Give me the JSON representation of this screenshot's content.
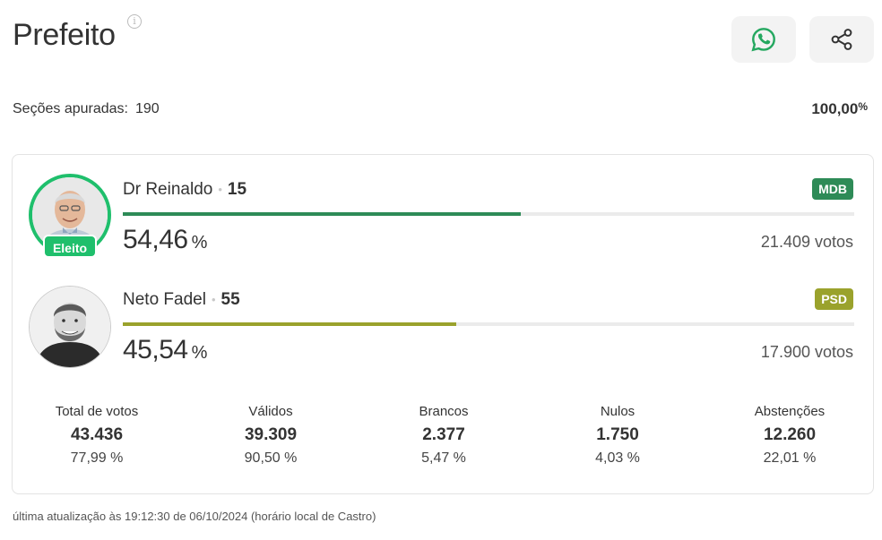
{
  "header": {
    "title": "Prefeito",
    "info_icon": "info-icon",
    "actions": [
      {
        "name": "whatsapp-button",
        "icon": "whatsapp-icon"
      },
      {
        "name": "share-button",
        "icon": "share-icon"
      }
    ]
  },
  "summary": {
    "secoes_label": "Seções apuradas:",
    "secoes_value": "190",
    "percent_value": "100,00",
    "percent_symbol": "%"
  },
  "candidates": [
    {
      "name": "Dr Reinaldo",
      "number": "15",
      "party": "MDB",
      "party_color": "#2e8b57",
      "bar_color": "#2e8b57",
      "share": 54.46,
      "percent": "54,46",
      "percent_symbol": "%",
      "votes": "21.409 votos",
      "elected": true,
      "badge": "Eleito"
    },
    {
      "name": "Neto Fadel",
      "number": "55",
      "party": "PSD",
      "party_color": "#9aa22c",
      "bar_color": "#9aa22c",
      "share": 45.54,
      "percent": "45,54",
      "percent_symbol": "%",
      "votes": "17.900 votos",
      "elected": false
    }
  ],
  "stats": [
    {
      "label": "Total de votos",
      "value": "43.436",
      "percent": "77,99 %"
    },
    {
      "label": "Válidos",
      "value": "39.309",
      "percent": "90,50 %"
    },
    {
      "label": "Brancos",
      "value": "2.377",
      "percent": "5,47 %"
    },
    {
      "label": "Nulos",
      "value": "1.750",
      "percent": "4,03 %"
    },
    {
      "label": "Abstenções",
      "value": "12.260",
      "percent": "22,01 %"
    }
  ],
  "footer": {
    "text": "última atualização às 19:12:30 de 06/10/2024 (horário local de Castro)"
  },
  "colors": {
    "elected_green": "#1fbf6c",
    "whatsapp_green": "#25a860"
  }
}
